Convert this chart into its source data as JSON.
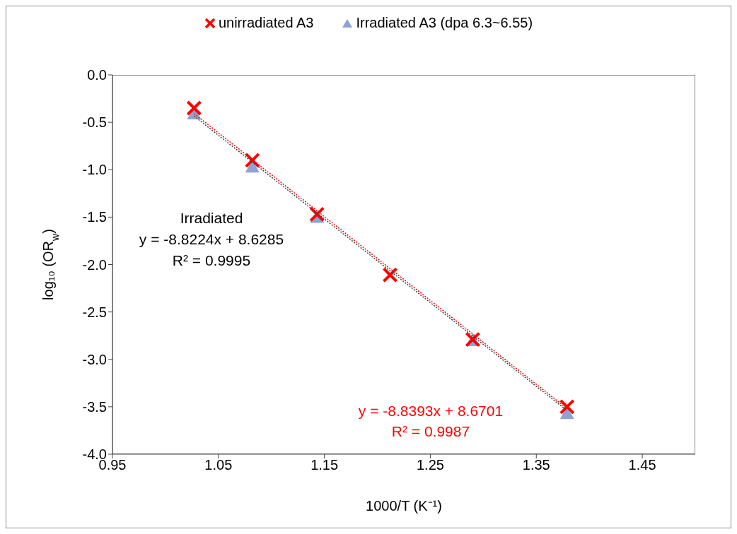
{
  "chart_data": {
    "type": "scatter",
    "xlabel": "1000/T (K⁻¹)",
    "ylabel": "log₁₀ (OR$_{w}$)",
    "xlim": [
      0.95,
      1.5
    ],
    "xticks": [
      0.95,
      1.05,
      1.15,
      1.25,
      1.35,
      1.45
    ],
    "ylim": [
      -4.0,
      0.0
    ],
    "yticks": [
      {
        "value": -4.0,
        "label": "-4.0"
      },
      {
        "value": -3.5,
        "label": "-3.5"
      },
      {
        "value": -3.0,
        "label": "-3.0"
      },
      {
        "value": -2.5,
        "label": "-2.5"
      },
      {
        "value": -2.0,
        "label": "-2.0"
      },
      {
        "value": -1.5,
        "label": "-1.5"
      },
      {
        "value": -1.0,
        "label": "-1.0"
      },
      {
        "value": -0.5,
        "label": "-0.5"
      },
      {
        "value": 0.0,
        "label": "0.0"
      }
    ],
    "grid": false,
    "legend": "top",
    "series": [
      {
        "name": "unirradiated A3",
        "color": "#ff0000",
        "marker": "cross",
        "x": [
          1.027,
          1.082,
          1.143,
          1.212,
          1.29,
          1.379
        ],
        "values": [
          -0.35,
          -0.9,
          -1.47,
          -2.11,
          -2.79,
          -3.5
        ]
      },
      {
        "name": "Irradiated A3 (dpa 6.3~6.55)",
        "color": "#8fa2d4",
        "marker": "triangle",
        "x": [
          1.027,
          1.082,
          1.143,
          1.29,
          1.379
        ],
        "values": [
          -0.41,
          -0.97,
          -1.5,
          -2.8,
          -3.57
        ]
      },
      {
        "type": "line",
        "color": "#ff0000",
        "line_style": "dotted",
        "marker": "none",
        "x": [
          1.027,
          1.379
        ],
        "values": [
          -0.408,
          -3.519
        ]
      },
      {
        "type": "line",
        "color": "#404040",
        "line_style": "dotted",
        "marker": "none",
        "x": [
          1.027,
          1.379
        ],
        "values": [
          -0.434,
          -3.54
        ]
      }
    ],
    "annotations": [
      "Irradiated",
      "y = -8.8224x + 8.6285",
      "R² = 0.9995",
      "y = -8.8393x + 8.6701",
      "R² = 0.9987"
    ]
  }
}
